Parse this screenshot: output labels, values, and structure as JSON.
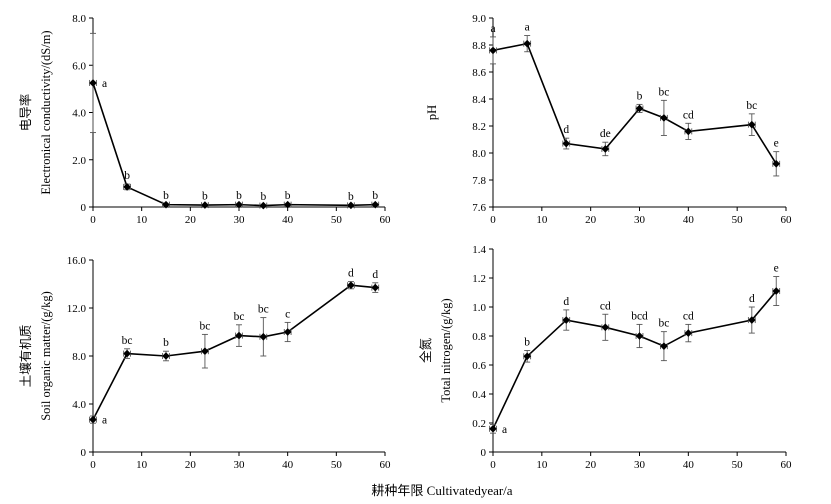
{
  "figure": {
    "xlabel": "耕种年限 Cultivatedyear/a"
  },
  "chart_data": [
    {
      "id": "ec",
      "type": "line",
      "title": "",
      "ylabel_cn": "电导率",
      "ylabel_en": "Electronical conductivity/(dS/m)",
      "xlabel": "",
      "xlim": [
        0,
        60
      ],
      "xticks": [
        "0",
        "10",
        "20",
        "30",
        "40",
        "50",
        "60"
      ],
      "ylim": [
        0,
        8.0
      ],
      "yticks": [
        "0",
        "2.0",
        "4.0",
        "6.0",
        "8.0"
      ],
      "grid": false,
      "series": [
        {
          "x": [
            0,
            7,
            15,
            23,
            30,
            35,
            40,
            53,
            58
          ],
          "y": [
            5.25,
            0.85,
            0.1,
            0.08,
            0.1,
            0.06,
            0.1,
            0.07,
            0.1
          ],
          "yerr": [
            2.1,
            0.12,
            0.02,
            0.02,
            0.03,
            0.02,
            0.03,
            0.02,
            0.03
          ],
          "xerr": [
            0.7,
            0.7,
            0.7,
            0.7,
            0.7,
            0.7,
            0.7,
            0.7,
            0.7
          ],
          "labels": [
            "a",
            "b",
            "b",
            "b",
            "b",
            "b",
            "b",
            "b",
            "b"
          ]
        }
      ]
    },
    {
      "id": "ph",
      "type": "line",
      "title": "",
      "ylabel_cn": "",
      "ylabel_en": "pH",
      "xlabel": "",
      "xlim": [
        0,
        60
      ],
      "xticks": [
        "0",
        "10",
        "20",
        "30",
        "40",
        "50",
        "60"
      ],
      "ylim": [
        7.6,
        9.0
      ],
      "yticks": [
        "7.6",
        "7.8",
        "8.0",
        "8.2",
        "8.4",
        "8.6",
        "8.8",
        "9.0"
      ],
      "grid": false,
      "series": [
        {
          "x": [
            0,
            7,
            15,
            23,
            30,
            35,
            40,
            53,
            58
          ],
          "y": [
            8.76,
            8.81,
            8.07,
            8.03,
            8.33,
            8.26,
            8.16,
            8.21,
            7.92
          ],
          "yerr": [
            0.1,
            0.06,
            0.04,
            0.05,
            0.03,
            0.13,
            0.06,
            0.08,
            0.09
          ],
          "xerr": [
            0.7,
            0.7,
            0.7,
            0.7,
            0.7,
            0.7,
            0.7,
            0.7,
            0.7
          ],
          "labels": [
            "a",
            "a",
            "d",
            "de",
            "b",
            "bc",
            "cd",
            "bc",
            "e"
          ]
        }
      ]
    },
    {
      "id": "som",
      "type": "line",
      "title": "",
      "ylabel_cn": "土壤有机质",
      "ylabel_en": "Soil organic matter/(g/kg)",
      "xlabel": "",
      "xlim": [
        0,
        60
      ],
      "xticks": [
        "0",
        "10",
        "20",
        "30",
        "40",
        "50",
        "60"
      ],
      "ylim": [
        0,
        16.0
      ],
      "yticks": [
        "0",
        "4.0",
        "8.0",
        "12.0",
        "16.0"
      ],
      "grid": false,
      "series": [
        {
          "x": [
            0,
            7,
            15,
            23,
            30,
            35,
            40,
            53,
            58
          ],
          "y": [
            2.7,
            8.2,
            8.0,
            8.4,
            9.7,
            9.6,
            10.0,
            13.9,
            13.7
          ],
          "yerr": [
            0.3,
            0.4,
            0.4,
            1.4,
            0.9,
            1.6,
            0.8,
            0.3,
            0.4
          ],
          "xerr": [
            0.7,
            0.7,
            0.7,
            0.7,
            0.7,
            0.7,
            0.7,
            0.7,
            0.7
          ],
          "labels": [
            "a",
            "bc",
            "b",
            "bc",
            "bc",
            "bc",
            "c",
            "d",
            "d"
          ]
        }
      ]
    },
    {
      "id": "tn",
      "type": "line",
      "title": "",
      "ylabel_cn": "全氮",
      "ylabel_en": "Total nitrogen/(g/kg)",
      "xlabel": "",
      "xlim": [
        0,
        60
      ],
      "xticks": [
        "0",
        "10",
        "20",
        "30",
        "40",
        "50",
        "60"
      ],
      "ylim": [
        0,
        1.4
      ],
      "yticks": [
        "0",
        "0.2",
        "0.4",
        "0.6",
        "0.8",
        "1.0",
        "1.2",
        "1.4"
      ],
      "grid": false,
      "series": [
        {
          "x": [
            0,
            7,
            15,
            23,
            30,
            35,
            40,
            53,
            58
          ],
          "y": [
            0.16,
            0.66,
            0.91,
            0.86,
            0.8,
            0.73,
            0.82,
            0.91,
            1.11
          ],
          "yerr": [
            0.03,
            0.04,
            0.07,
            0.09,
            0.08,
            0.1,
            0.06,
            0.09,
            0.1
          ],
          "xerr": [
            0.7,
            0.7,
            0.7,
            0.7,
            0.7,
            0.7,
            0.7,
            0.7,
            0.7
          ],
          "labels": [
            "a",
            "b",
            "d",
            "cd",
            "bcd",
            "bc",
            "cd",
            "d",
            "e"
          ]
        }
      ]
    }
  ]
}
